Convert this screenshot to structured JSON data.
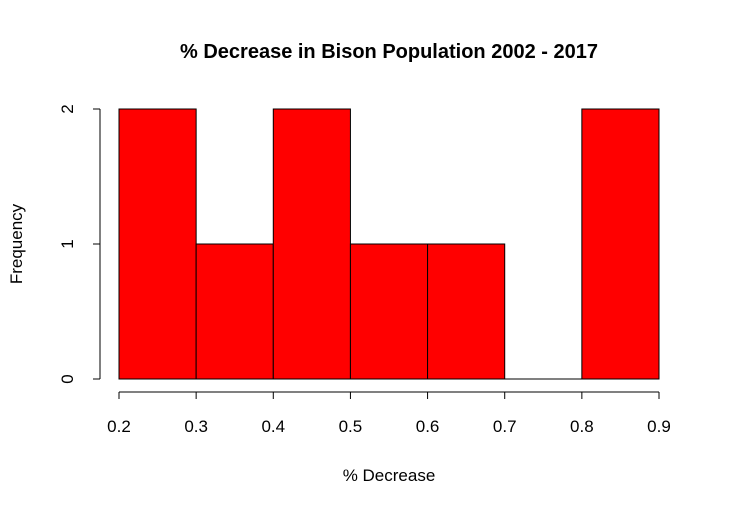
{
  "chart_data": {
    "type": "bar",
    "subtype": "histogram",
    "title": "% Decrease in Bison Population 2002 - 2017",
    "xlabel": "% Decrease",
    "ylabel": "Frequency",
    "bins": [
      {
        "start": 0.2,
        "end": 0.3,
        "count": 2
      },
      {
        "start": 0.3,
        "end": 0.4,
        "count": 1
      },
      {
        "start": 0.4,
        "end": 0.5,
        "count": 2
      },
      {
        "start": 0.5,
        "end": 0.6,
        "count": 1
      },
      {
        "start": 0.6,
        "end": 0.7,
        "count": 1
      },
      {
        "start": 0.7,
        "end": 0.8,
        "count": 0
      },
      {
        "start": 0.8,
        "end": 0.9,
        "count": 2
      }
    ],
    "xlim": [
      0.2,
      0.9
    ],
    "ylim": [
      0,
      2
    ],
    "x_ticks": [
      "0.2",
      "0.3",
      "0.4",
      "0.5",
      "0.6",
      "0.7",
      "0.8",
      "0.9"
    ],
    "y_ticks": [
      "0",
      "1",
      "2"
    ],
    "bar_color": "#ff0000",
    "grid": false,
    "legend": "none"
  }
}
